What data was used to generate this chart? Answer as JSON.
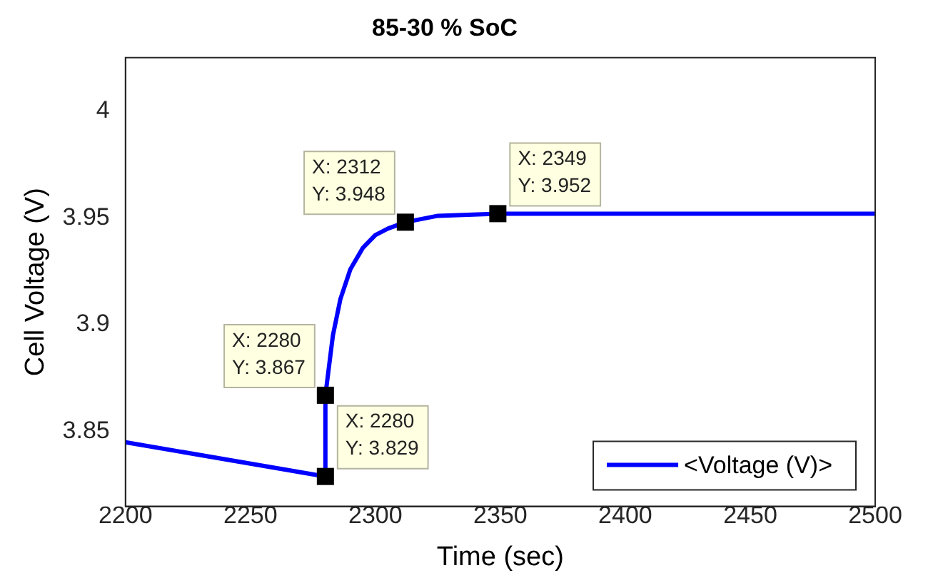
{
  "chart_data": {
    "type": "line",
    "title": "85-30 % SoC",
    "xlabel": "Time (sec)",
    "ylabel": "Cell Voltage (V)",
    "series": [
      {
        "name": "<Voltage (V)>",
        "color": "#0000ff",
        "x": [
          2200,
          2280,
          2280,
          2283,
          2286,
          2290,
          2295,
          2300,
          2305,
          2312,
          2325,
          2349,
          2400,
          2500
        ],
        "values": [
          3.845,
          3.829,
          3.867,
          3.895,
          3.912,
          3.926,
          3.936,
          3.942,
          3.945,
          3.948,
          3.951,
          3.952,
          3.952,
          3.952
        ]
      }
    ],
    "xlim": [
      2200,
      2500
    ],
    "xticks": [
      2200,
      2250,
      2300,
      2350,
      2400,
      2450,
      2500
    ],
    "ylim": [
      3.815,
      4.025
    ],
    "yticks": [
      3.85,
      3.9,
      3.95,
      4
    ],
    "grid": false,
    "legend": "bottom right",
    "marker": "none",
    "line_style": "solid",
    "annotations": [
      {
        "text": "X: 2280\nY: 3.829",
        "x": 2280,
        "y": 3.829
      },
      {
        "text": "X: 2280\nY: 3.867",
        "x": 2280,
        "y": 3.867
      },
      {
        "text": "X: 2312\nY: 3.948",
        "x": 2312,
        "y": 3.948
      },
      {
        "text": "X: 2349\nY: 3.952",
        "x": 2349,
        "y": 3.952
      }
    ]
  }
}
